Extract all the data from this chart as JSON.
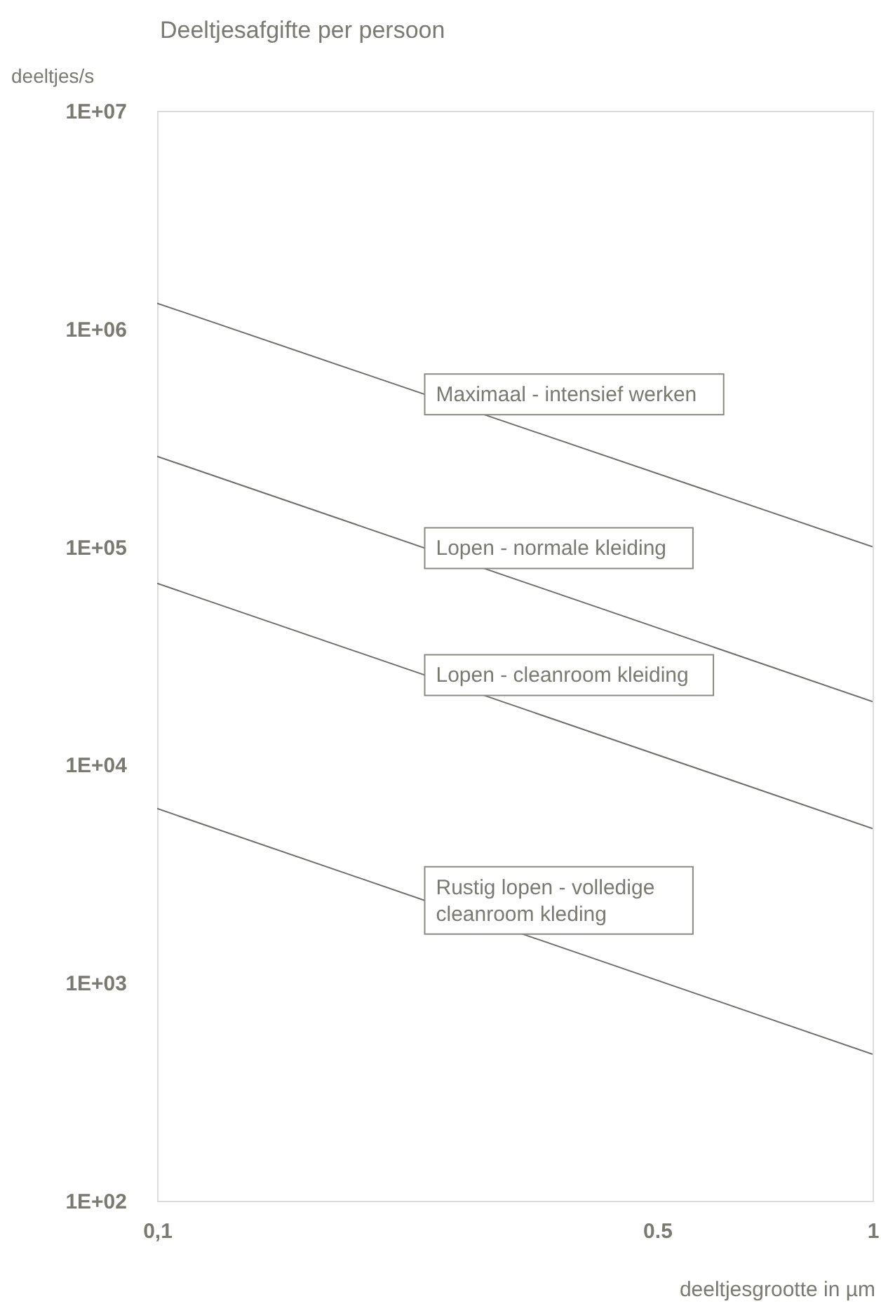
{
  "chart_data": {
    "type": "line",
    "title": "Deeltjesafgifte per persoon",
    "xlabel": "deeltjesgrootte in µm",
    "ylabel": "deeltjes/s",
    "x": [
      0.1,
      1
    ],
    "series": [
      {
        "name": "Maximaal - intensief werken",
        "color": "#6e6e6a",
        "values": [
          1310000,
          100000
        ]
      },
      {
        "name": "Lopen - normale kleiding",
        "color": "#6e6e6a",
        "values": [
          260000,
          19500
        ]
      },
      {
        "name": "Lopen - cleanroom kleiding",
        "color": "#6e6e6a",
        "values": [
          68000,
          5100
        ]
      },
      {
        "name": "Rustig lopen - volledige cleanroom kleding",
        "color": "#6e6e6a",
        "values": [
          6300,
          470
        ]
      }
    ],
    "log": "xy",
    "xlim": [
      0.1,
      1
    ],
    "ylim": [
      100,
      10000000
    ],
    "xticks": [
      {
        "value": 0.1,
        "label": "0,1"
      },
      {
        "value": 0.5,
        "label": "0.5"
      },
      1
    ],
    "yticks": [
      {
        "value": 100,
        "label": "1E+02"
      },
      {
        "value": 1000,
        "label": "1E+03"
      },
      {
        "value": 10000,
        "label": "1E+04"
      },
      {
        "value": 100000,
        "label": "1E+05"
      },
      {
        "value": 1000000,
        "label": "1E+06"
      },
      {
        "value": 10000000,
        "label": "1E+07"
      }
    ],
    "grid": false,
    "legend": false,
    "marker": "none",
    "line_style": "solid"
  }
}
